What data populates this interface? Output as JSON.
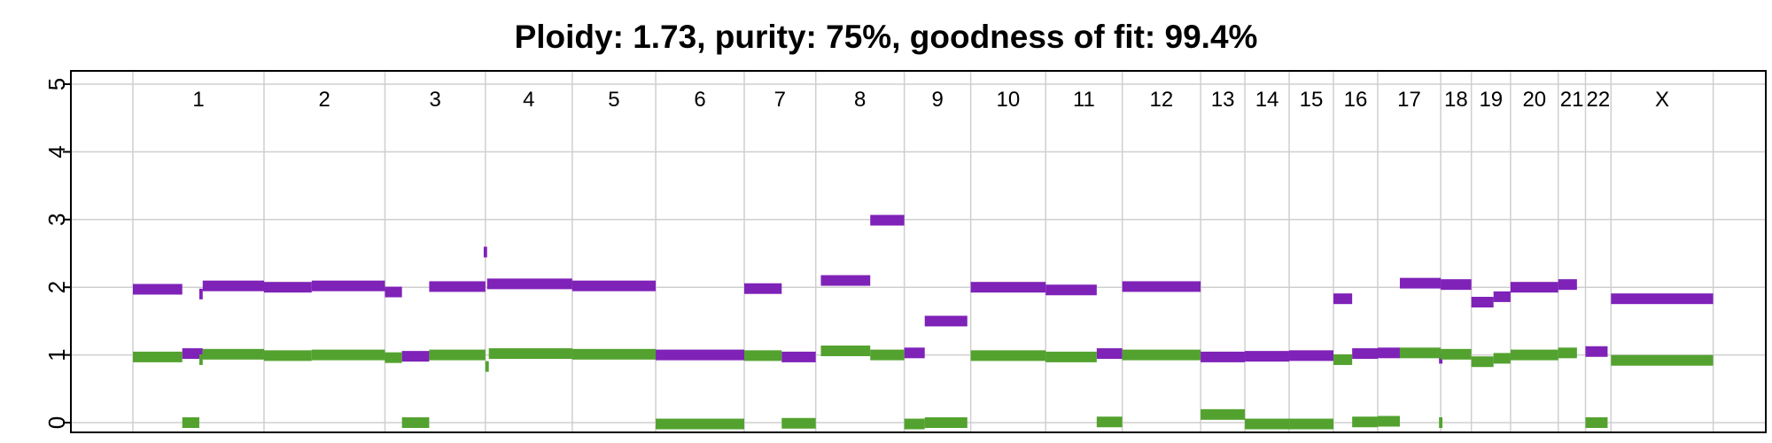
{
  "chart_data": {
    "type": "segment",
    "title": "Ploidy: 1.73, purity: 75%, goodness of fit: 99.4%",
    "ylim": [
      0,
      5
    ],
    "y_ticks": [
      "0",
      "1",
      "2",
      "3",
      "4",
      "5"
    ],
    "grid": true,
    "colors": {
      "major": "#7f22b8",
      "minor": "#53a22f",
      "grid": "#cfcfcf"
    },
    "chromosomes": [
      {
        "label": "1",
        "start": 0.0,
        "end": 0.077
      },
      {
        "label": "2",
        "start": 0.077,
        "end": 0.148
      },
      {
        "label": "3",
        "start": 0.148,
        "end": 0.207
      },
      {
        "label": "4",
        "start": 0.207,
        "end": 0.258
      },
      {
        "label": "5",
        "start": 0.258,
        "end": 0.307
      },
      {
        "label": "6",
        "start": 0.307,
        "end": 0.359
      },
      {
        "label": "7",
        "start": 0.359,
        "end": 0.401
      },
      {
        "label": "8",
        "start": 0.401,
        "end": 0.453
      },
      {
        "label": "9",
        "start": 0.453,
        "end": 0.492
      },
      {
        "label": "10",
        "start": 0.492,
        "end": 0.536
      },
      {
        "label": "11",
        "start": 0.536,
        "end": 0.581
      },
      {
        "label": "12",
        "start": 0.581,
        "end": 0.627
      },
      {
        "label": "13",
        "start": 0.627,
        "end": 0.653
      },
      {
        "label": "14",
        "start": 0.653,
        "end": 0.679
      },
      {
        "label": "15",
        "start": 0.679,
        "end": 0.705
      },
      {
        "label": "16",
        "start": 0.705,
        "end": 0.731
      },
      {
        "label": "17",
        "start": 0.731,
        "end": 0.768
      },
      {
        "label": "18",
        "start": 0.768,
        "end": 0.786
      },
      {
        "label": "19",
        "start": 0.786,
        "end": 0.809
      },
      {
        "label": "20",
        "start": 0.809,
        "end": 0.837
      },
      {
        "label": "21",
        "start": 0.837,
        "end": 0.853
      },
      {
        "label": "22",
        "start": 0.853,
        "end": 0.868
      },
      {
        "label": "X",
        "start": 0.868,
        "end": 0.928
      }
    ],
    "series": [
      {
        "color": "#7f22b8",
        "segments": [
          {
            "start": 0.0,
            "end": 0.029,
            "value": 1.97
          },
          {
            "start": 0.029,
            "end": 0.041,
            "value": 1.02
          },
          {
            "start": 0.039,
            "end": 0.041,
            "value": 1.9
          },
          {
            "start": 0.041,
            "end": 0.077,
            "value": 2.02
          },
          {
            "start": 0.077,
            "end": 0.105,
            "value": 2.0
          },
          {
            "start": 0.105,
            "end": 0.148,
            "value": 2.02
          },
          {
            "start": 0.148,
            "end": 0.158,
            "value": 1.93
          },
          {
            "start": 0.158,
            "end": 0.174,
            "value": 0.98
          },
          {
            "start": 0.174,
            "end": 0.207,
            "value": 2.01
          },
          {
            "start": 0.206,
            "end": 0.208,
            "value": 2.52
          },
          {
            "start": 0.208,
            "end": 0.258,
            "value": 2.05
          },
          {
            "start": 0.258,
            "end": 0.307,
            "value": 2.02
          },
          {
            "start": 0.307,
            "end": 0.359,
            "value": 1.0
          },
          {
            "start": 0.359,
            "end": 0.381,
            "value": 1.98
          },
          {
            "start": 0.381,
            "end": 0.401,
            "value": 0.97
          },
          {
            "start": 0.404,
            "end": 0.433,
            "value": 2.1
          },
          {
            "start": 0.433,
            "end": 0.453,
            "value": 2.99
          },
          {
            "start": 0.453,
            "end": 0.465,
            "value": 1.03
          },
          {
            "start": 0.465,
            "end": 0.49,
            "value": 1.5
          },
          {
            "start": 0.492,
            "end": 0.536,
            "value": 2.0
          },
          {
            "start": 0.536,
            "end": 0.566,
            "value": 1.96
          },
          {
            "start": 0.566,
            "end": 0.581,
            "value": 1.02
          },
          {
            "start": 0.581,
            "end": 0.627,
            "value": 2.01
          },
          {
            "start": 0.627,
            "end": 0.653,
            "value": 0.97
          },
          {
            "start": 0.653,
            "end": 0.679,
            "value": 0.98
          },
          {
            "start": 0.679,
            "end": 0.705,
            "value": 0.99
          },
          {
            "start": 0.705,
            "end": 0.716,
            "value": 1.83
          },
          {
            "start": 0.716,
            "end": 0.731,
            "value": 1.02
          },
          {
            "start": 0.731,
            "end": 0.744,
            "value": 1.03
          },
          {
            "start": 0.744,
            "end": 0.768,
            "value": 2.06
          },
          {
            "start": 0.768,
            "end": 0.786,
            "value": 2.04
          },
          {
            "start": 0.767,
            "end": 0.769,
            "value": 0.95
          },
          {
            "start": 0.786,
            "end": 0.799,
            "value": 1.78
          },
          {
            "start": 0.799,
            "end": 0.809,
            "value": 1.86
          },
          {
            "start": 0.809,
            "end": 0.837,
            "value": 2.0
          },
          {
            "start": 0.837,
            "end": 0.848,
            "value": 2.04
          },
          {
            "start": 0.853,
            "end": 0.866,
            "value": 1.05
          },
          {
            "start": 0.868,
            "end": 0.928,
            "value": 1.83
          }
        ]
      },
      {
        "color": "#53a22f",
        "segments": [
          {
            "start": 0.0,
            "end": 0.029,
            "value": 0.97
          },
          {
            "start": 0.029,
            "end": 0.039,
            "value": 0.0
          },
          {
            "start": 0.039,
            "end": 0.041,
            "value": 0.93
          },
          {
            "start": 0.041,
            "end": 0.077,
            "value": 1.01
          },
          {
            "start": 0.077,
            "end": 0.105,
            "value": 0.99
          },
          {
            "start": 0.105,
            "end": 0.148,
            "value": 1.0
          },
          {
            "start": 0.148,
            "end": 0.158,
            "value": 0.96
          },
          {
            "start": 0.158,
            "end": 0.174,
            "value": 0.0
          },
          {
            "start": 0.174,
            "end": 0.207,
            "value": 1.0
          },
          {
            "start": 0.207,
            "end": 0.209,
            "value": 0.83
          },
          {
            "start": 0.209,
            "end": 0.258,
            "value": 1.02
          },
          {
            "start": 0.258,
            "end": 0.307,
            "value": 1.01
          },
          {
            "start": 0.307,
            "end": 0.359,
            "value": -0.02
          },
          {
            "start": 0.359,
            "end": 0.381,
            "value": 0.99
          },
          {
            "start": 0.381,
            "end": 0.401,
            "value": -0.01
          },
          {
            "start": 0.404,
            "end": 0.433,
            "value": 1.06
          },
          {
            "start": 0.433,
            "end": 0.453,
            "value": 1.0
          },
          {
            "start": 0.453,
            "end": 0.465,
            "value": -0.02
          },
          {
            "start": 0.465,
            "end": 0.49,
            "value": 0.0
          },
          {
            "start": 0.492,
            "end": 0.536,
            "value": 0.99
          },
          {
            "start": 0.536,
            "end": 0.566,
            "value": 0.97
          },
          {
            "start": 0.566,
            "end": 0.581,
            "value": 0.01
          },
          {
            "start": 0.581,
            "end": 0.627,
            "value": 1.0
          },
          {
            "start": 0.627,
            "end": 0.653,
            "value": 0.12
          },
          {
            "start": 0.653,
            "end": 0.679,
            "value": -0.02
          },
          {
            "start": 0.679,
            "end": 0.705,
            "value": -0.02
          },
          {
            "start": 0.705,
            "end": 0.716,
            "value": 0.93
          },
          {
            "start": 0.716,
            "end": 0.731,
            "value": 0.01
          },
          {
            "start": 0.731,
            "end": 0.744,
            "value": 0.02
          },
          {
            "start": 0.744,
            "end": 0.768,
            "value": 1.03
          },
          {
            "start": 0.768,
            "end": 0.786,
            "value": 1.01
          },
          {
            "start": 0.767,
            "end": 0.769,
            "value": 0.0
          },
          {
            "start": 0.786,
            "end": 0.799,
            "value": 0.9
          },
          {
            "start": 0.799,
            "end": 0.809,
            "value": 0.95
          },
          {
            "start": 0.809,
            "end": 0.837,
            "value": 1.0
          },
          {
            "start": 0.837,
            "end": 0.848,
            "value": 1.03
          },
          {
            "start": 0.853,
            "end": 0.866,
            "value": 0.0
          },
          {
            "start": 0.868,
            "end": 0.928,
            "value": 0.92
          }
        ]
      }
    ]
  }
}
